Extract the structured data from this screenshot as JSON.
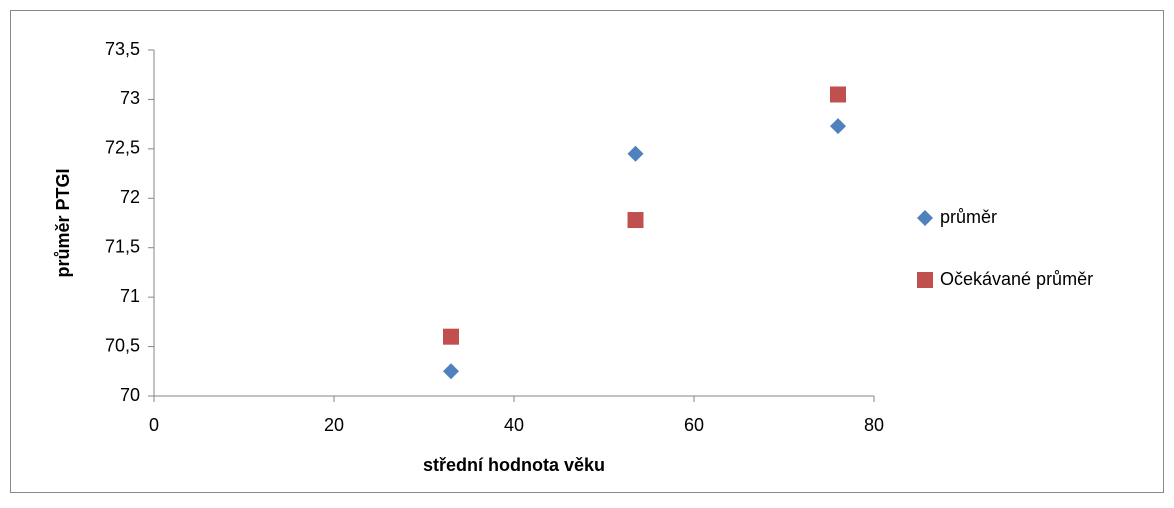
{
  "chart_data": {
    "type": "scatter",
    "x_label": "střední hodnota věku",
    "y_label": "průměr PTGI",
    "xlim": [
      0,
      80
    ],
    "xticks": [
      0,
      20,
      40,
      60,
      80
    ],
    "ylim": [
      70,
      73.5
    ],
    "yticks": [
      70,
      {
        "value": 70.5,
        "label": "70,5"
      },
      71,
      {
        "value": 71.5,
        "label": "71,5"
      },
      72,
      {
        "value": 72.5,
        "label": "72,5"
      },
      73,
      {
        "value": 73.5,
        "label": "73,5"
      }
    ],
    "grid": false,
    "legend": "right",
    "series": [
      {
        "name": "průměr",
        "color": "#4f81bd",
        "marker": "diamond",
        "x": [
          33,
          53.5,
          76
        ],
        "values": [
          70.25,
          72.45,
          72.73
        ]
      },
      {
        "name": "Očekávané průměr",
        "color": "#c0504d",
        "marker": "square",
        "x": [
          33,
          53.5,
          76
        ],
        "values": [
          70.6,
          71.78,
          73.05
        ]
      }
    ]
  }
}
